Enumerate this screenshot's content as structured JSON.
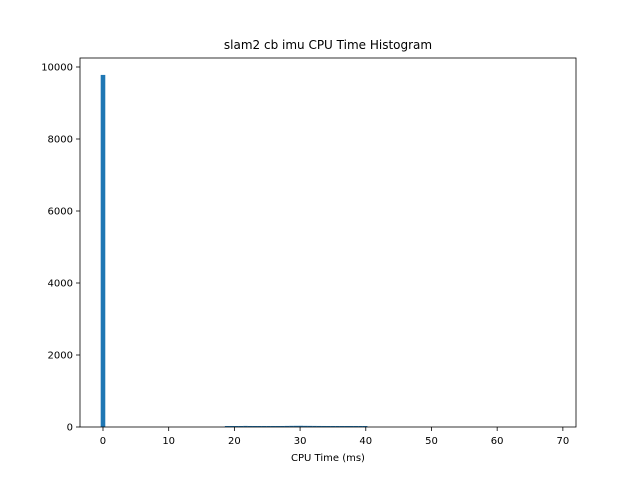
{
  "chart_data": {
    "type": "bar",
    "title": "slam2 cb imu CPU Time Histogram",
    "xlabel": "CPU Time (ms)",
    "ylabel": "",
    "xlim": [
      -3.5,
      72
    ],
    "ylim": [
      0,
      10250
    ],
    "xticks": [
      0,
      10,
      20,
      30,
      40,
      50,
      60,
      70
    ],
    "yticks": [
      0,
      2000,
      4000,
      6000,
      8000,
      10000
    ],
    "bar_color": "#1f77b4",
    "bin_width": 0.7,
    "bins": [
      {
        "x": 0.0,
        "count": 9780
      },
      {
        "x": 18.9,
        "count": 12
      },
      {
        "x": 19.6,
        "count": 8
      },
      {
        "x": 20.3,
        "count": 15
      },
      {
        "x": 21.0,
        "count": 25
      },
      {
        "x": 21.7,
        "count": 30
      },
      {
        "x": 22.4,
        "count": 28
      },
      {
        "x": 23.1,
        "count": 22
      },
      {
        "x": 23.8,
        "count": 10
      },
      {
        "x": 24.5,
        "count": 6
      },
      {
        "x": 25.2,
        "count": 18
      },
      {
        "x": 25.9,
        "count": 24
      },
      {
        "x": 26.6,
        "count": 26
      },
      {
        "x": 27.3,
        "count": 28
      },
      {
        "x": 28.0,
        "count": 30
      },
      {
        "x": 28.7,
        "count": 32
      },
      {
        "x": 29.4,
        "count": 33
      },
      {
        "x": 30.1,
        "count": 34
      },
      {
        "x": 30.8,
        "count": 32
      },
      {
        "x": 31.5,
        "count": 31
      },
      {
        "x": 32.2,
        "count": 30
      },
      {
        "x": 32.9,
        "count": 29
      },
      {
        "x": 33.6,
        "count": 28
      },
      {
        "x": 34.3,
        "count": 27
      },
      {
        "x": 35.0,
        "count": 26
      },
      {
        "x": 35.7,
        "count": 25
      },
      {
        "x": 36.4,
        "count": 24
      },
      {
        "x": 37.1,
        "count": 22
      },
      {
        "x": 37.8,
        "count": 18
      },
      {
        "x": 38.5,
        "count": 8
      },
      {
        "x": 39.2,
        "count": 14
      },
      {
        "x": 39.9,
        "count": 6
      }
    ]
  }
}
